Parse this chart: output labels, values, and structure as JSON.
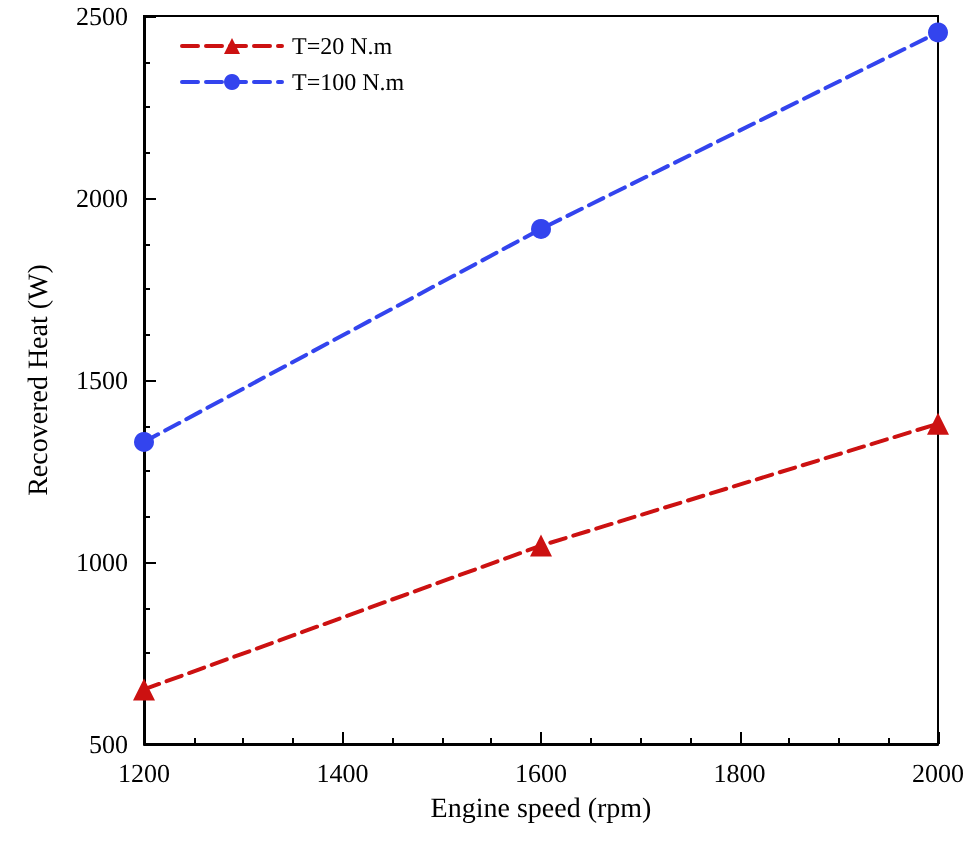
{
  "chart_data": {
    "type": "line",
    "xlabel": "Engine speed (rpm)",
    "ylabel": "Recovered Heat (W)",
    "x": [
      1200,
      1600,
      2000
    ],
    "series": [
      {
        "name": "T=20 N.m",
        "color": "#cc1111",
        "values": [
          650,
          1045,
          1380
        ],
        "marker": "triangle"
      },
      {
        "name": "T=100 N.m",
        "color": "#3344ee",
        "values": [
          1330,
          1915,
          2455
        ],
        "marker": "circle"
      }
    ],
    "xlim": [
      1200,
      2000
    ],
    "xticks": [
      1200,
      1400,
      1600,
      1800,
      2000
    ],
    "ylim": [
      500,
      2500
    ],
    "yticks": [
      500,
      1000,
      1500,
      2000,
      2500
    ],
    "line_style": "dashed",
    "legend": "top left",
    "grid": false
  }
}
